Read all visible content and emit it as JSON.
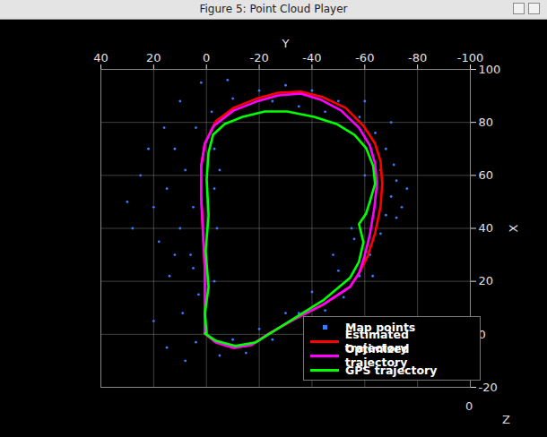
{
  "window_title": "Figure 5: Point Cloud Player",
  "chart_data": {
    "type": "line",
    "xlabel": "Y",
    "ylabel": "X",
    "zlabel": "Z",
    "xlim": [
      40,
      -100
    ],
    "xticks": [
      40,
      20,
      0,
      -20,
      -40,
      -60,
      -80,
      -100
    ],
    "ylim": [
      -20,
      100
    ],
    "yticks": [
      -20,
      0,
      20,
      40,
      60,
      80,
      100
    ],
    "zticks": [
      0
    ],
    "grid": true,
    "legend": "lower right",
    "series": [
      {
        "name": "Map points",
        "type": "scatter",
        "marker": "point",
        "color": "#3a7bff",
        "x": [
          12,
          8,
          15,
          5,
          10,
          18,
          6,
          14,
          3,
          9,
          20,
          4,
          -5,
          -15,
          -25,
          -35,
          -45,
          -52,
          -58,
          -62,
          -66,
          -68,
          -70,
          -72,
          -71,
          -68,
          -64,
          -58,
          -50,
          -40,
          -30,
          -20,
          -10,
          -2,
          4,
          22,
          25,
          20,
          28,
          16,
          -3,
          -4,
          -3,
          -5,
          -60,
          -62,
          -56,
          -50,
          -40,
          -30,
          -20,
          8,
          15,
          30,
          -74,
          -76,
          -66,
          -35,
          -25,
          -45,
          2,
          -8,
          10,
          -3,
          -72,
          -55,
          -63,
          -48,
          -10,
          5,
          12,
          -60,
          -70
        ],
        "values": [
          70,
          62,
          55,
          48,
          40,
          35,
          30,
          22,
          15,
          8,
          5,
          -3,
          -8,
          -7,
          -2,
          8,
          9,
          14,
          22,
          30,
          38,
          45,
          52,
          58,
          64,
          70,
          76,
          82,
          88,
          92,
          94,
          92,
          89,
          84,
          78,
          70,
          60,
          48,
          40,
          78,
          55,
          40,
          20,
          62,
          60,
          50,
          36,
          24,
          16,
          8,
          2,
          -10,
          -5,
          50,
          48,
          55,
          62,
          86,
          88,
          84,
          95,
          96,
          88,
          70,
          44,
          40,
          22,
          30,
          -2,
          25,
          30,
          88,
          80
        ]
      },
      {
        "name": "Estimated trajectory",
        "type": "line",
        "line_style": "solid",
        "color": "#ff0000",
        "x": [
          0.6,
          -3.5,
          -10.3,
          -17.1,
          -23.8,
          -34.0,
          -44.2,
          -54.4,
          -57.8,
          -61.2,
          -63.9,
          -66.0,
          -66.6,
          -66.0,
          -63.9,
          -59.5,
          -52.7,
          -44.2,
          -35.7,
          -27.2,
          -18.8,
          -10.3,
          -3.5,
          0.6,
          2.0,
          2.0,
          1.3,
          0.6,
          0.6,
          0.6
        ],
        "values": [
          0.3,
          -3.0,
          -5.1,
          -4.0,
          0.3,
          6.1,
          11.2,
          17.9,
          23.0,
          29.7,
          38.2,
          48.3,
          56.8,
          65.2,
          72.0,
          78.7,
          85.5,
          89.5,
          91.6,
          91.2,
          88.9,
          85.5,
          80.4,
          72.0,
          63.5,
          51.7,
          38.2,
          24.7,
          11.2,
          0.3
        ]
      },
      {
        "name": "Optimized trajectory",
        "type": "line",
        "line_style": "solid",
        "color": "#ff00ff",
        "x": [
          0.6,
          -3.5,
          -10.3,
          -17.1,
          -23.8,
          -34.0,
          -44.2,
          -54.4,
          -57.8,
          -59.8,
          -61.9,
          -63.6,
          -64.6,
          -63.9,
          -61.9,
          -57.8,
          -51.0,
          -43.5,
          -35.7,
          -27.2,
          -18.8,
          -10.3,
          -2.8,
          0.6,
          2.0,
          2.0,
          1.3,
          0.6,
          0.6,
          0.6
        ],
        "values": [
          0.3,
          -3.0,
          -5.1,
          -4.0,
          0.3,
          6.1,
          11.2,
          17.9,
          23.0,
          29.1,
          37.5,
          47.6,
          56.8,
          64.5,
          71.3,
          78.0,
          84.5,
          88.5,
          90.9,
          90.2,
          87.8,
          84.5,
          78.7,
          72.0,
          63.5,
          51.7,
          38.2,
          24.7,
          11.2,
          0.3
        ]
      },
      {
        "name": "GPS trajectory",
        "type": "line",
        "line_style": "solid",
        "color": "#00ff00",
        "x": [
          0.6,
          -3.5,
          -10.9,
          -18.8,
          -30.6,
          -44.2,
          -54.4,
          -57.8,
          -59.5,
          -57.8,
          -60.5,
          -61.9,
          -63.9,
          -63.2,
          -60.5,
          -56.1,
          -49.3,
          -40.8,
          -30.6,
          -22.1,
          -13.7,
          -6.9,
          -2.5,
          -0.8,
          -0.1,
          -0.8,
          0.3,
          -0.8,
          0.6,
          -0.1
        ],
        "values": [
          0.3,
          -2.4,
          -4.4,
          -3.0,
          4.4,
          12.8,
          21.3,
          27.4,
          34.8,
          41.6,
          45.6,
          50.0,
          56.8,
          63.5,
          70.3,
          75.3,
          79.4,
          82.1,
          84.1,
          84.1,
          82.1,
          79.4,
          75.3,
          68.6,
          58.5,
          44.9,
          31.4,
          17.9,
          7.8,
          0.3
        ]
      }
    ]
  }
}
